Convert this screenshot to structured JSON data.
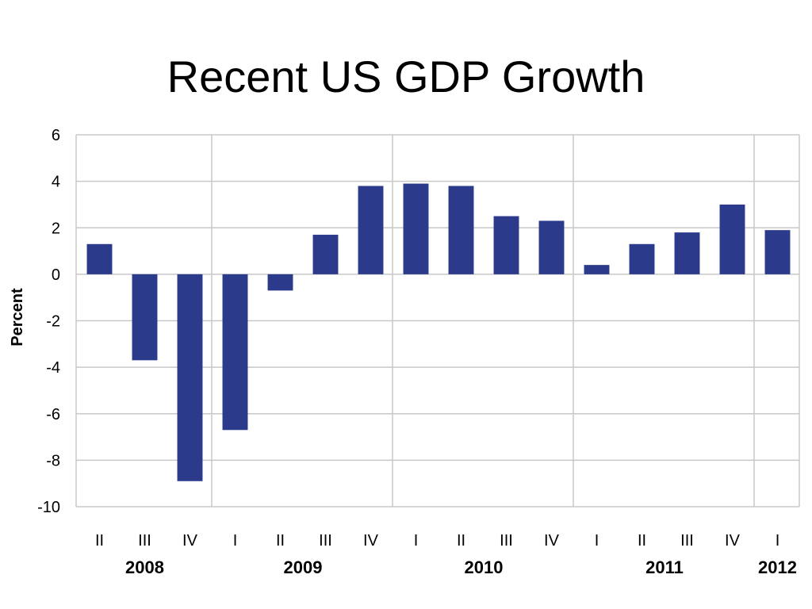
{
  "slide": {
    "title": "Recent US GDP Growth"
  },
  "chart_data": {
    "type": "bar",
    "title": "",
    "xlabel": "",
    "ylabel": "Percent",
    "ylim": [
      -10,
      6
    ],
    "yticks": [
      6,
      4,
      2,
      0,
      -2,
      -4,
      -6,
      -8,
      -10
    ],
    "grid": true,
    "bar_color": "#2b3a8a",
    "categories": [
      "II",
      "III",
      "IV",
      "I",
      "II",
      "III",
      "IV",
      "I",
      "II",
      "III",
      "IV",
      "I",
      "II",
      "III",
      "IV",
      "I"
    ],
    "years": [
      "2008",
      "2008",
      "2008",
      "2009",
      "2009",
      "2009",
      "2009",
      "2010",
      "2010",
      "2010",
      "2010",
      "2011",
      "2011",
      "2011",
      "2011",
      "2012"
    ],
    "year_labels": [
      "2008",
      "2009",
      "2010",
      "2011",
      "2012"
    ],
    "values": [
      1.3,
      -3.7,
      -8.9,
      -6.7,
      -0.7,
      1.7,
      3.8,
      3.9,
      3.8,
      2.5,
      2.3,
      0.4,
      1.3,
      1.8,
      3.0,
      1.9
    ]
  }
}
